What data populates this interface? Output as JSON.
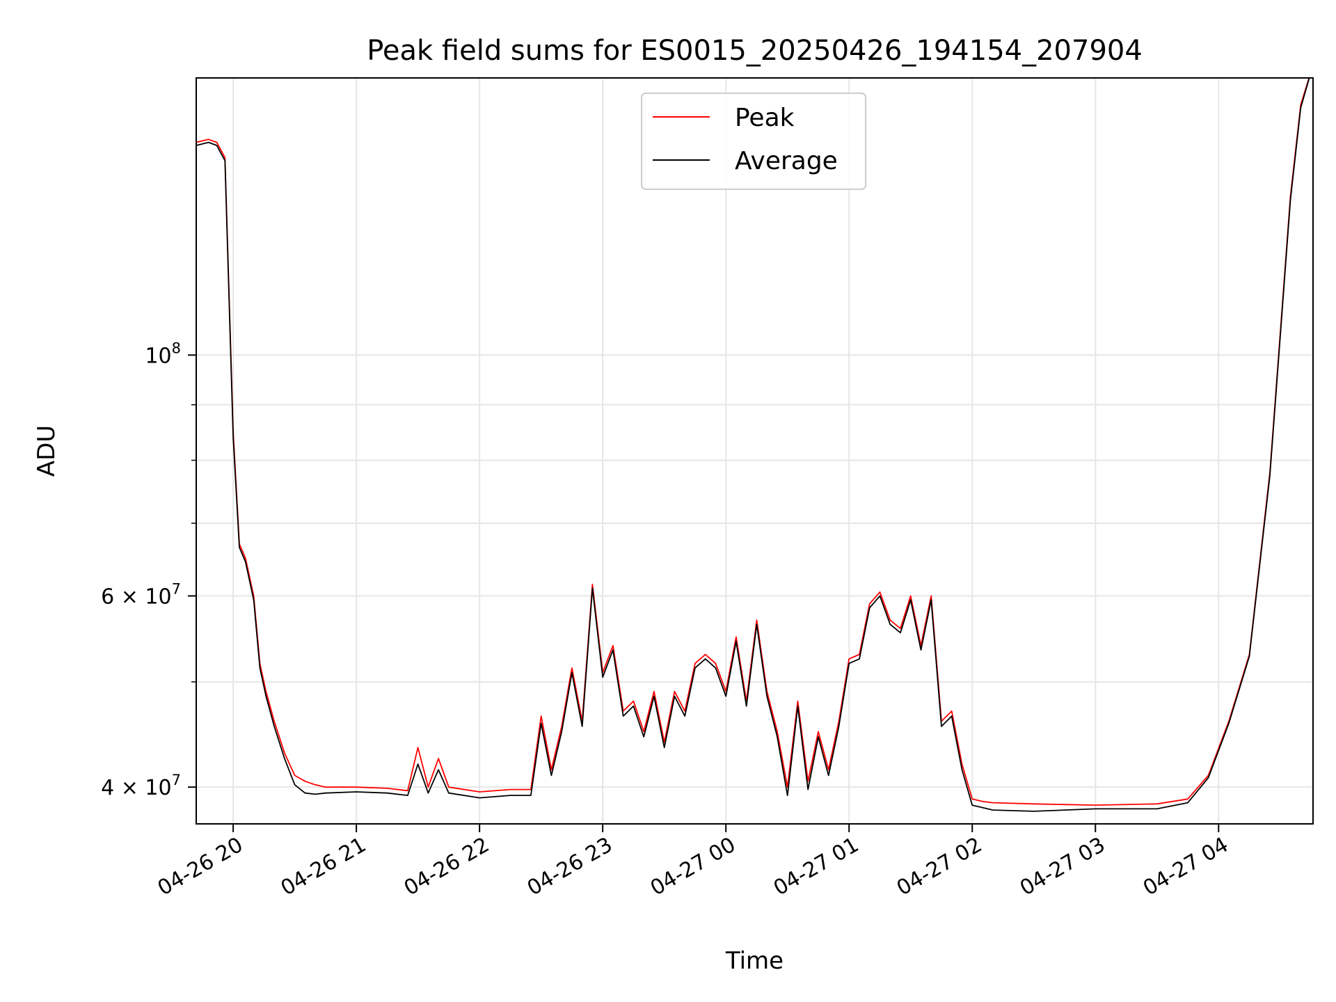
{
  "chart_data": {
    "type": "line",
    "title": "Peak field sums for ES0015_20250426_194154_207904",
    "xlabel": "Time",
    "ylabel": "ADU",
    "y_scale": "log",
    "ylim": [
      37000000,
      180000000
    ],
    "xlim": [
      "2025-04-26 19:42",
      "2025-04-27 04:46"
    ],
    "grid": true,
    "legend_position": "top-center",
    "x_ticks": [
      {
        "x": "2025-04-26 20:00",
        "label": "04-26 20"
      },
      {
        "x": "2025-04-26 21:00",
        "label": "04-26 21"
      },
      {
        "x": "2025-04-26 22:00",
        "label": "04-26 22"
      },
      {
        "x": "2025-04-26 23:00",
        "label": "04-26 23"
      },
      {
        "x": "2025-04-27 00:00",
        "label": "04-27 00"
      },
      {
        "x": "2025-04-27 01:00",
        "label": "04-27 01"
      },
      {
        "x": "2025-04-27 02:00",
        "label": "04-27 02"
      },
      {
        "x": "2025-04-27 03:00",
        "label": "04-27 03"
      },
      {
        "x": "2025-04-27 04:00",
        "label": "04-27 04"
      }
    ],
    "y_major_ticks": [
      {
        "value": 40000000,
        "label": "4 × 10",
        "exp": "7"
      },
      {
        "value": 60000000,
        "label": "6 × 10",
        "exp": "7"
      },
      {
        "value": 100000000,
        "label": "10",
        "exp": "8"
      }
    ],
    "y_minor_ticks": [
      50000000,
      70000000,
      80000000,
      90000000
    ],
    "series": [
      {
        "name": "Peak",
        "color": "#ff0000",
        "x": [
          "2025-04-26 19:42",
          "2025-04-26 19:48",
          "2025-04-26 19:52",
          "2025-04-26 19:56",
          "2025-04-26 20:00",
          "2025-04-26 20:03",
          "2025-04-26 20:06",
          "2025-04-26 20:10",
          "2025-04-26 20:13",
          "2025-04-26 20:16",
          "2025-04-26 20:20",
          "2025-04-26 20:25",
          "2025-04-26 20:30",
          "2025-04-26 20:35",
          "2025-04-26 20:40",
          "2025-04-26 20:45",
          "2025-04-26 21:00",
          "2025-04-26 21:15",
          "2025-04-26 21:25",
          "2025-04-26 21:30",
          "2025-04-26 21:35",
          "2025-04-26 21:40",
          "2025-04-26 21:45",
          "2025-04-26 22:00",
          "2025-04-26 22:15",
          "2025-04-26 22:25",
          "2025-04-26 22:30",
          "2025-04-26 22:35",
          "2025-04-26 22:40",
          "2025-04-26 22:45",
          "2025-04-26 22:50",
          "2025-04-26 22:55",
          "2025-04-26 23:00",
          "2025-04-26 23:05",
          "2025-04-26 23:10",
          "2025-04-26 23:15",
          "2025-04-26 23:20",
          "2025-04-26 23:25",
          "2025-04-26 23:30",
          "2025-04-26 23:35",
          "2025-04-26 23:40",
          "2025-04-26 23:45",
          "2025-04-26 23:50",
          "2025-04-26 23:55",
          "2025-04-27 00:00",
          "2025-04-27 00:05",
          "2025-04-27 00:10",
          "2025-04-27 00:15",
          "2025-04-27 00:20",
          "2025-04-27 00:25",
          "2025-04-27 00:30",
          "2025-04-27 00:35",
          "2025-04-27 00:40",
          "2025-04-27 00:45",
          "2025-04-27 00:50",
          "2025-04-27 00:55",
          "2025-04-27 01:00",
          "2025-04-27 01:05",
          "2025-04-27 01:10",
          "2025-04-27 01:15",
          "2025-04-27 01:20",
          "2025-04-27 01:25",
          "2025-04-27 01:30",
          "2025-04-27 01:35",
          "2025-04-27 01:40",
          "2025-04-27 01:45",
          "2025-04-27 01:50",
          "2025-04-27 01:55",
          "2025-04-27 02:00",
          "2025-04-27 02:05",
          "2025-04-27 02:10",
          "2025-04-27 02:30",
          "2025-04-27 03:00",
          "2025-04-27 03:30",
          "2025-04-27 03:45",
          "2025-04-27 03:55",
          "2025-04-27 04:05",
          "2025-04-27 04:15",
          "2025-04-27 04:25",
          "2025-04-27 04:35",
          "2025-04-27 04:40",
          "2025-04-27 04:46"
        ],
        "y": [
          157000000,
          158000000,
          157000000,
          152000000,
          85000000,
          67000000,
          65000000,
          60000000,
          52000000,
          49000000,
          46000000,
          43000000,
          41000000,
          40500000,
          40200000,
          40000000,
          40000000,
          39900000,
          39700000,
          43500000,
          40000000,
          42500000,
          40000000,
          39600000,
          39800000,
          39800000,
          46500000,
          41500000,
          45500000,
          51500000,
          46000000,
          61500000,
          51000000,
          54000000,
          47000000,
          48000000,
          45000000,
          49000000,
          44000000,
          49000000,
          47000000,
          52000000,
          53000000,
          52000000,
          49000000,
          55000000,
          48000000,
          57000000,
          49000000,
          45000000,
          40000000,
          48000000,
          40500000,
          45000000,
          41500000,
          46000000,
          52500000,
          53000000,
          59000000,
          60500000,
          57000000,
          56000000,
          60000000,
          54000000,
          60000000,
          46000000,
          47000000,
          42000000,
          39000000,
          38800000,
          38700000,
          38600000,
          38500000,
          38600000,
          39000000,
          41000000,
          46000000,
          53000000,
          78000000,
          140000000,
          170000000,
          185000000
        ]
      },
      {
        "name": "Average",
        "color": "#000000",
        "x": [
          "2025-04-26 19:42",
          "2025-04-26 19:48",
          "2025-04-26 19:52",
          "2025-04-26 19:56",
          "2025-04-26 20:00",
          "2025-04-26 20:03",
          "2025-04-26 20:06",
          "2025-04-26 20:10",
          "2025-04-26 20:13",
          "2025-04-26 20:16",
          "2025-04-26 20:20",
          "2025-04-26 20:25",
          "2025-04-26 20:30",
          "2025-04-26 20:35",
          "2025-04-26 20:40",
          "2025-04-26 20:45",
          "2025-04-26 21:00",
          "2025-04-26 21:15",
          "2025-04-26 21:25",
          "2025-04-26 21:30",
          "2025-04-26 21:35",
          "2025-04-26 21:40",
          "2025-04-26 21:45",
          "2025-04-26 22:00",
          "2025-04-26 22:15",
          "2025-04-26 22:25",
          "2025-04-26 22:30",
          "2025-04-26 22:35",
          "2025-04-26 22:40",
          "2025-04-26 22:45",
          "2025-04-26 22:50",
          "2025-04-26 22:55",
          "2025-04-26 23:00",
          "2025-04-26 23:05",
          "2025-04-26 23:10",
          "2025-04-26 23:15",
          "2025-04-26 23:20",
          "2025-04-26 23:25",
          "2025-04-26 23:30",
          "2025-04-26 23:35",
          "2025-04-26 23:40",
          "2025-04-26 23:45",
          "2025-04-26 23:50",
          "2025-04-26 23:55",
          "2025-04-27 00:00",
          "2025-04-27 00:05",
          "2025-04-27 00:10",
          "2025-04-27 00:15",
          "2025-04-27 00:20",
          "2025-04-27 00:25",
          "2025-04-27 00:30",
          "2025-04-27 00:35",
          "2025-04-27 00:40",
          "2025-04-27 00:45",
          "2025-04-27 00:50",
          "2025-04-27 00:55",
          "2025-04-27 01:00",
          "2025-04-27 01:05",
          "2025-04-27 01:10",
          "2025-04-27 01:15",
          "2025-04-27 01:20",
          "2025-04-27 01:25",
          "2025-04-27 01:30",
          "2025-04-27 01:35",
          "2025-04-27 01:40",
          "2025-04-27 01:45",
          "2025-04-27 01:50",
          "2025-04-27 01:55",
          "2025-04-27 02:00",
          "2025-04-27 02:05",
          "2025-04-27 02:10",
          "2025-04-27 02:30",
          "2025-04-27 03:00",
          "2025-04-27 03:30",
          "2025-04-27 03:45",
          "2025-04-27 03:55",
          "2025-04-27 04:05",
          "2025-04-27 04:15",
          "2025-04-27 04:25",
          "2025-04-27 04:35",
          "2025-04-27 04:40",
          "2025-04-27 04:46"
        ],
        "y": [
          156000000,
          157000000,
          156000000,
          151000000,
          84000000,
          66500000,
          64500000,
          59500000,
          51500000,
          48500000,
          45500000,
          42500000,
          40200000,
          39500000,
          39400000,
          39500000,
          39600000,
          39500000,
          39300000,
          42000000,
          39500000,
          41500000,
          39500000,
          39100000,
          39300000,
          39300000,
          45800000,
          41000000,
          45000000,
          51000000,
          45500000,
          61000000,
          50500000,
          53500000,
          46500000,
          47500000,
          44500000,
          48500000,
          43500000,
          48500000,
          46500000,
          51500000,
          52500000,
          51500000,
          48500000,
          54500000,
          47500000,
          56500000,
          48500000,
          44500000,
          39300000,
          47500000,
          39800000,
          44500000,
          41000000,
          45500000,
          52000000,
          52500000,
          58500000,
          60000000,
          56500000,
          55500000,
          59500000,
          53500000,
          59500000,
          45500000,
          46500000,
          41500000,
          38500000,
          38300000,
          38100000,
          38000000,
          38200000,
          38200000,
          38700000,
          40800000,
          45800000,
          52800000,
          77500000,
          139000000,
          169000000,
          185000000
        ]
      }
    ]
  }
}
